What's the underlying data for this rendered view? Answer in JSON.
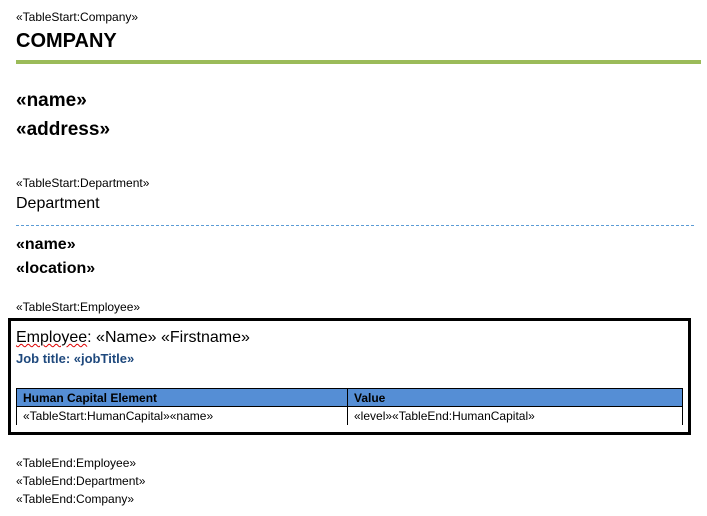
{
  "company": {
    "table_start": "«TableStart:Company»",
    "heading": "COMPANY",
    "name": "«name»",
    "address": "«address»"
  },
  "department": {
    "table_start": "«TableStart:Department»",
    "heading": "Department",
    "name": "«name»",
    "location": "«location»"
  },
  "employee": {
    "table_start": "«TableStart:Employee»",
    "label": "Employee",
    "rest": ": «Name» «Firstname»",
    "job_title": "Job title: «jobTitle»"
  },
  "table": {
    "headers": [
      "Human Capital Element",
      "Value"
    ],
    "rows": [
      [
        "«TableStart:HumanCapital»«name»",
        "«level»«TableEnd:HumanCapital»"
      ]
    ]
  },
  "table_end": [
    "«TableEnd:Employee»",
    "«TableEnd:Department»",
    "«TableEnd:Company»"
  ],
  "colors": {
    "rule_green": "#9bbb59",
    "dash_blue": "#5b9bd5",
    "header_blue": "#558ed5",
    "job_title": "#1f497d"
  }
}
